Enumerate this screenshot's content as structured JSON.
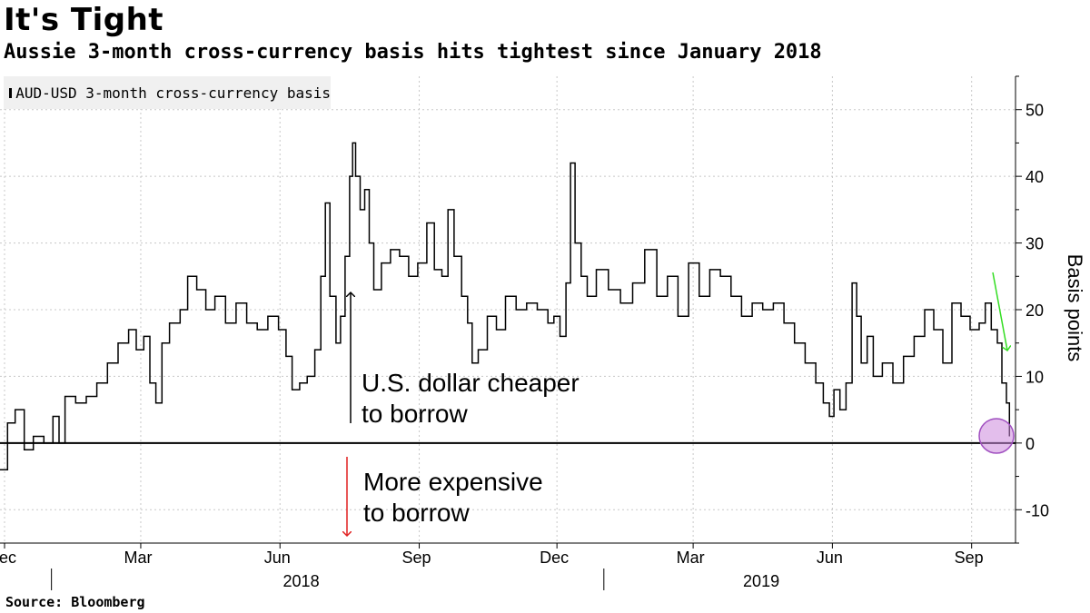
{
  "header": {
    "title": "It's Tight",
    "subtitle": "Aussie 3-month cross-currency basis hits tightest since January 2018"
  },
  "legend": {
    "label": "AUD-USD 3-month cross-currency basis",
    "swatch_color": "#000000"
  },
  "source": "Source: Bloomberg",
  "annotations": {
    "up_line1": "U.S. dollar cheaper",
    "up_line2": "to borrow",
    "down_line1": "More expensive",
    "down_line2": "to borrow",
    "up_arrow_color": "#000000",
    "down_arrow_color": "#e02020",
    "highlight_arrow_color": "#33dd22",
    "highlight_circle_color": "#cc88dd"
  },
  "chart_data": {
    "type": "line",
    "title": "It's Tight",
    "subtitle": "Aussie 3-month cross-currency basis hits tightest since January 2018",
    "ylabel": "Basis points",
    "xlabel": "",
    "ylim": [
      -15,
      55
    ],
    "yticks": [
      50,
      40,
      30,
      20,
      10,
      0,
      -10
    ],
    "xlim": [
      "2017-11-28",
      "2019-09-30"
    ],
    "xticks": [
      {
        "label": "Dec",
        "date": "2017-12-01"
      },
      {
        "label": "Mar",
        "date": "2018-03-01"
      },
      {
        "label": "Jun",
        "date": "2018-06-01"
      },
      {
        "label": "Sep",
        "date": "2018-09-01"
      },
      {
        "label": "Dec",
        "date": "2018-12-01"
      },
      {
        "label": "Mar",
        "date": "2019-03-01"
      },
      {
        "label": "Jun",
        "date": "2019-06-01"
      },
      {
        "label": "Sep",
        "date": "2019-09-01"
      }
    ],
    "year_labels": [
      {
        "label": "2018",
        "date": "2018-06-15"
      },
      {
        "label": "2019",
        "date": "2019-04-15"
      }
    ],
    "grid": true,
    "legend_position": "top-left",
    "series": [
      {
        "name": "AUD-USD 3-month cross-currency basis",
        "color": "#000000",
        "points": [
          [
            "2017-11-28",
            -4
          ],
          [
            "2017-12-03",
            3
          ],
          [
            "2017-12-08",
            5
          ],
          [
            "2017-12-14",
            -1
          ],
          [
            "2017-12-20",
            1
          ],
          [
            "2017-12-27",
            0
          ],
          [
            "2018-01-02",
            4
          ],
          [
            "2018-01-06",
            0
          ],
          [
            "2018-01-10",
            7
          ],
          [
            "2018-01-17",
            6
          ],
          [
            "2018-01-24",
            7
          ],
          [
            "2018-01-31",
            9
          ],
          [
            "2018-02-07",
            12
          ],
          [
            "2018-02-14",
            15
          ],
          [
            "2018-02-21",
            17
          ],
          [
            "2018-02-26",
            14
          ],
          [
            "2018-03-03",
            16
          ],
          [
            "2018-03-07",
            9
          ],
          [
            "2018-03-11",
            6
          ],
          [
            "2018-03-15",
            15
          ],
          [
            "2018-03-20",
            18
          ],
          [
            "2018-03-27",
            20
          ],
          [
            "2018-04-01",
            25
          ],
          [
            "2018-04-07",
            23
          ],
          [
            "2018-04-13",
            20
          ],
          [
            "2018-04-19",
            22
          ],
          [
            "2018-04-26",
            18
          ],
          [
            "2018-05-03",
            21
          ],
          [
            "2018-05-10",
            18
          ],
          [
            "2018-05-17",
            17
          ],
          [
            "2018-05-24",
            19
          ],
          [
            "2018-05-31",
            17
          ],
          [
            "2018-06-05",
            13
          ],
          [
            "2018-06-09",
            8
          ],
          [
            "2018-06-14",
            9
          ],
          [
            "2018-06-19",
            10
          ],
          [
            "2018-06-24",
            14
          ],
          [
            "2018-06-28",
            25
          ],
          [
            "2018-07-01",
            36
          ],
          [
            "2018-07-04",
            22
          ],
          [
            "2018-07-08",
            15
          ],
          [
            "2018-07-11",
            19
          ],
          [
            "2018-07-14",
            28
          ],
          [
            "2018-07-17",
            40
          ],
          [
            "2018-07-19",
            45
          ],
          [
            "2018-07-21",
            40
          ],
          [
            "2018-07-24",
            35
          ],
          [
            "2018-07-27",
            38
          ],
          [
            "2018-07-30",
            30
          ],
          [
            "2018-08-02",
            23
          ],
          [
            "2018-08-07",
            27
          ],
          [
            "2018-08-13",
            29
          ],
          [
            "2018-08-19",
            28
          ],
          [
            "2018-08-25",
            25
          ],
          [
            "2018-08-31",
            27
          ],
          [
            "2018-09-06",
            33
          ],
          [
            "2018-09-11",
            26
          ],
          [
            "2018-09-16",
            25
          ],
          [
            "2018-09-20",
            35
          ],
          [
            "2018-09-24",
            28
          ],
          [
            "2018-09-29",
            22
          ],
          [
            "2018-10-03",
            18
          ],
          [
            "2018-10-06",
            12
          ],
          [
            "2018-10-10",
            14
          ],
          [
            "2018-10-16",
            19
          ],
          [
            "2018-10-22",
            17
          ],
          [
            "2018-10-28",
            22
          ],
          [
            "2018-11-04",
            20
          ],
          [
            "2018-11-11",
            21
          ],
          [
            "2018-11-18",
            20
          ],
          [
            "2018-11-25",
            18
          ],
          [
            "2018-11-29",
            19
          ],
          [
            "2018-12-03",
            16
          ],
          [
            "2018-12-07",
            24
          ],
          [
            "2018-12-10",
            42
          ],
          [
            "2018-12-13",
            30
          ],
          [
            "2018-12-17",
            25
          ],
          [
            "2018-12-21",
            22
          ],
          [
            "2018-12-27",
            26
          ],
          [
            "2019-01-04",
            23
          ],
          [
            "2019-01-12",
            21
          ],
          [
            "2019-01-20",
            24
          ],
          [
            "2019-01-28",
            29
          ],
          [
            "2019-02-05",
            22
          ],
          [
            "2019-02-12",
            25
          ],
          [
            "2019-02-19",
            19
          ],
          [
            "2019-02-26",
            27
          ],
          [
            "2019-03-05",
            22
          ],
          [
            "2019-03-12",
            26
          ],
          [
            "2019-03-19",
            25
          ],
          [
            "2019-03-26",
            22
          ],
          [
            "2019-04-02",
            19
          ],
          [
            "2019-04-09",
            21
          ],
          [
            "2019-04-16",
            20
          ],
          [
            "2019-04-23",
            21
          ],
          [
            "2019-04-30",
            18
          ],
          [
            "2019-05-07",
            15
          ],
          [
            "2019-05-14",
            12
          ],
          [
            "2019-05-21",
            9
          ],
          [
            "2019-05-26",
            6
          ],
          [
            "2019-05-30",
            4
          ],
          [
            "2019-06-02",
            8
          ],
          [
            "2019-06-06",
            5
          ],
          [
            "2019-06-10",
            9
          ],
          [
            "2019-06-14",
            24
          ],
          [
            "2019-06-17",
            19
          ],
          [
            "2019-06-20",
            12
          ],
          [
            "2019-06-24",
            16
          ],
          [
            "2019-06-28",
            10
          ],
          [
            "2019-07-04",
            12
          ],
          [
            "2019-07-11",
            9
          ],
          [
            "2019-07-18",
            13
          ],
          [
            "2019-07-25",
            16
          ],
          [
            "2019-08-01",
            20
          ],
          [
            "2019-08-07",
            17
          ],
          [
            "2019-08-13",
            12
          ],
          [
            "2019-08-19",
            21
          ],
          [
            "2019-08-25",
            19
          ],
          [
            "2019-08-31",
            17
          ],
          [
            "2019-09-06",
            18
          ],
          [
            "2019-09-10",
            21
          ],
          [
            "2019-09-14",
            17
          ],
          [
            "2019-09-18",
            15
          ],
          [
            "2019-09-21",
            9
          ],
          [
            "2019-09-24",
            6
          ],
          [
            "2019-09-26",
            1
          ]
        ]
      }
    ]
  }
}
